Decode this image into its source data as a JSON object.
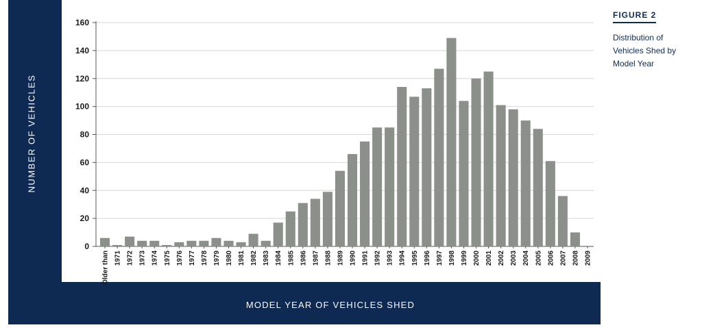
{
  "figure": {
    "number": "FIGURE 2",
    "title": "Distribution of Vehicles Shed by Model Year"
  },
  "colors": {
    "frame": "#0e2a52",
    "bar": "#8c908b",
    "grid": "#d6d6d6",
    "axis": "#555555"
  },
  "chart_data": {
    "type": "bar",
    "title": "Distribution of Vehicles Shed by Model Year",
    "xlabel": "MODEL YEAR OF VEHICLES SHED",
    "ylabel": "NUMBER OF VEHICLES",
    "ylim": [
      0,
      160
    ],
    "yticks": [
      0,
      20,
      40,
      60,
      80,
      100,
      120,
      140,
      160
    ],
    "grid": true,
    "categories": [
      "Older than",
      "1971",
      "1972",
      "1973",
      "1974",
      "1975",
      "1976",
      "1977",
      "1978",
      "1979",
      "1980",
      "1981",
      "1982",
      "1983",
      "1984",
      "1985",
      "1986",
      "1987",
      "1988",
      "1989",
      "1990",
      "1991",
      "1992",
      "1993",
      "1994",
      "1995",
      "1996",
      "1997",
      "1998",
      "1999",
      "2000",
      "2001",
      "2002",
      "2003",
      "2004",
      "2005",
      "2006",
      "2007",
      "2008",
      "2009"
    ],
    "values": [
      6,
      1,
      7,
      4,
      4,
      1,
      3,
      4,
      4,
      6,
      4,
      3,
      9,
      4,
      17,
      25,
      31,
      34,
      39,
      54,
      66,
      75,
      85,
      85,
      114,
      107,
      113,
      127,
      149,
      104,
      120,
      125,
      101,
      98,
      90,
      84,
      61,
      36,
      10,
      0
    ]
  }
}
